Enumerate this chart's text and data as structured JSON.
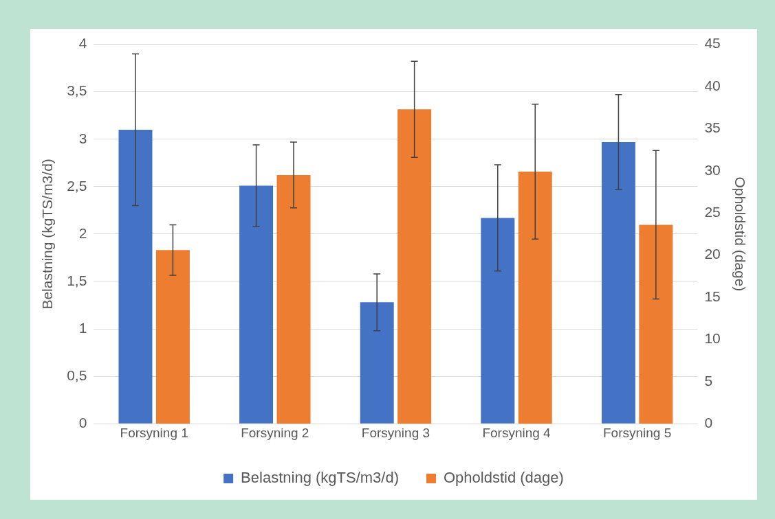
{
  "chart_data": {
    "type": "bar",
    "categories": [
      "Forsyning 1",
      "Forsyning 2",
      "Forsyning 3",
      "Forsyning 4",
      "Forsyning 5"
    ],
    "series": [
      {
        "name": "Belastning (kgTS/m3/d)",
        "color": "#4472c4",
        "values": [
          3.1,
          2.51,
          1.28,
          2.17,
          2.97
        ],
        "errors": [
          0.8,
          0.43,
          0.3,
          0.56,
          0.5
        ]
      },
      {
        "name": "Opholdstid (dage)",
        "color": "#ed7d31",
        "axis": "y2",
        "values": [
          20.6,
          29.5,
          37.3,
          29.9,
          23.6
        ],
        "errors": [
          3,
          3.9,
          5.7,
          8,
          8.8
        ]
      }
    ],
    "ylabel": "Belastning (kgTS/m3/d)",
    "y2label": "Opholdstid (dage)",
    "ylim": [
      0,
      4
    ],
    "yticks": [
      0,
      {
        "value": 0.5,
        "label": "0,5"
      },
      1,
      {
        "value": 1.5,
        "label": "1,5"
      },
      2,
      {
        "value": 2.5,
        "label": "2,5"
      },
      3,
      {
        "value": 3.5,
        "label": "3,5"
      },
      4
    ],
    "y2lim": [
      0,
      45
    ],
    "y2ticks": [
      0,
      5,
      10,
      15,
      20,
      25,
      30,
      35,
      40,
      45
    ],
    "grid": "y",
    "legend": "bottom"
  }
}
